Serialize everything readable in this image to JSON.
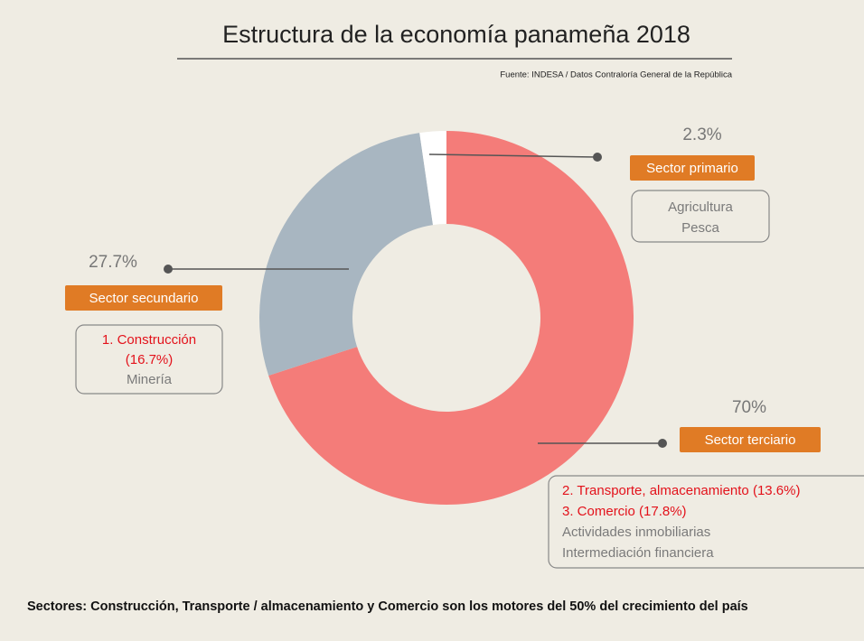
{
  "chart_data": {
    "type": "donut",
    "title": "Estructura de la economía panameña 2018",
    "source": "Fuente: INDESA / Datos Contraloría General de la República",
    "footnote": "Sectores: Construcción, Transporte / almacenamiento y Comercio son los motores del 50% del crecimiento del país",
    "categories": [
      "Sector terciario",
      "Sector secundario",
      "Sector primario"
    ],
    "values": [
      70,
      27.7,
      2.3
    ],
    "value_labels": [
      "70%",
      "27.7%",
      "2.3%"
    ],
    "colors": [
      "#f47c79",
      "#a8b6c1",
      "#ffffff"
    ],
    "label_color": "#e07b25",
    "highlight_color": "#e3121b",
    "details": [
      [
        {
          "text": "2. Transporte, almacenamiento (13.6%)",
          "highlight": true
        },
        {
          "text": "3. Comercio (17.8%)",
          "highlight": true
        },
        {
          "text": "Actividades inmobiliarias",
          "highlight": false
        },
        {
          "text": "Intermediación financiera",
          "highlight": false
        }
      ],
      [
        {
          "text": "1. Construcción",
          "highlight": true
        },
        {
          "text": "(16.7%)",
          "highlight": true
        },
        {
          "text": "Minería",
          "highlight": false
        }
      ],
      [
        {
          "text": "Agricultura",
          "highlight": false
        },
        {
          "text": "Pesca",
          "highlight": false
        }
      ]
    ]
  }
}
